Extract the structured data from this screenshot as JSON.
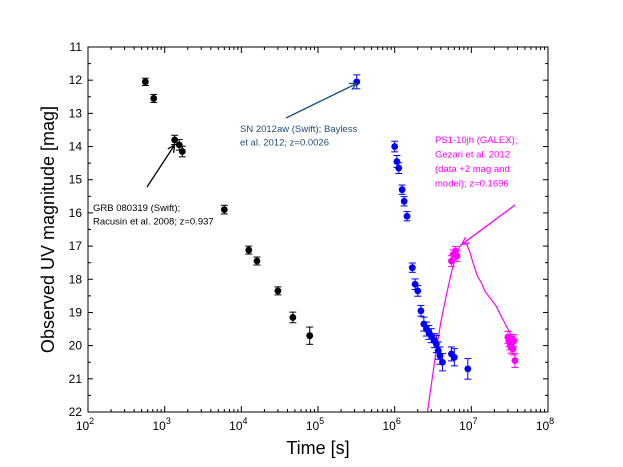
{
  "chart_data": {
    "type": "scatter",
    "xscale": "log",
    "xlim": [
      100,
      100000000
    ],
    "ylim": [
      11,
      22
    ],
    "y_inverted": true,
    "xlabel": "Time [s]",
    "ylabel": "Observed UV magnitude [mag]",
    "x_tick_labels": [
      {
        "base": "10",
        "exp": "2"
      },
      {
        "base": "10",
        "exp": "3"
      },
      {
        "base": "10",
        "exp": "4"
      },
      {
        "base": "10",
        "exp": "5"
      },
      {
        "base": "10",
        "exp": "6"
      },
      {
        "base": "10",
        "exp": "7"
      },
      {
        "base": "10",
        "exp": "8"
      }
    ],
    "y_ticks": [
      "11",
      "12",
      "13",
      "14",
      "15",
      "16",
      "17",
      "18",
      "19",
      "20",
      "21",
      "22"
    ],
    "series": [
      {
        "name": "GRB 080319",
        "color": "#000000",
        "points": [
          {
            "x": 560,
            "y": 12.05,
            "err": 0.05
          },
          {
            "x": 720,
            "y": 12.55,
            "err": 0.06
          },
          {
            "x": 1350,
            "y": 13.8,
            "err": 0.08
          },
          {
            "x": 1550,
            "y": 13.95,
            "err": 0.1
          },
          {
            "x": 1700,
            "y": 14.15,
            "err": 0.1
          },
          {
            "x": 6000,
            "y": 15.9,
            "err": 0.07
          },
          {
            "x": 12500,
            "y": 17.12,
            "err": 0.06
          },
          {
            "x": 16000,
            "y": 17.45,
            "err": 0.06
          },
          {
            "x": 30000,
            "y": 18.35,
            "err": 0.06
          },
          {
            "x": 47000,
            "y": 19.15,
            "err": 0.1
          },
          {
            "x": 78000,
            "y": 19.7,
            "err": 0.2
          }
        ]
      },
      {
        "name": "SN 2012aw",
        "color": "#0000ff",
        "points": [
          {
            "x": 320000,
            "y": 12.05,
            "err": 0.15
          },
          {
            "x": 1000000,
            "y": 14.0,
            "err": 0.1
          },
          {
            "x": 1070000,
            "y": 14.45,
            "err": 0.12
          },
          {
            "x": 1130000,
            "y": 14.65,
            "err": 0.1
          },
          {
            "x": 1250000,
            "y": 15.3,
            "err": 0.08
          },
          {
            "x": 1330000,
            "y": 15.65,
            "err": 0.08
          },
          {
            "x": 1450000,
            "y": 16.1,
            "err": 0.08
          },
          {
            "x": 1700000,
            "y": 17.65,
            "err": 0.08
          },
          {
            "x": 1850000,
            "y": 18.15,
            "err": 0.1
          },
          {
            "x": 2000000,
            "y": 18.35,
            "err": 0.1
          },
          {
            "x": 2200000,
            "y": 18.95,
            "err": 0.1
          },
          {
            "x": 2400000,
            "y": 19.35,
            "err": 0.15
          },
          {
            "x": 2600000,
            "y": 19.5,
            "err": 0.15
          },
          {
            "x": 2800000,
            "y": 19.6,
            "err": 0.15
          },
          {
            "x": 3000000,
            "y": 19.7,
            "err": 0.15
          },
          {
            "x": 3300000,
            "y": 19.85,
            "err": 0.15
          },
          {
            "x": 3500000,
            "y": 19.95,
            "err": 0.2
          },
          {
            "x": 3700000,
            "y": 20.15,
            "err": 0.2
          },
          {
            "x": 3900000,
            "y": 20.3,
            "err": 0.2
          },
          {
            "x": 4200000,
            "y": 20.5,
            "err": 0.2
          },
          {
            "x": 5500000,
            "y": 20.25,
            "err": 0.15
          },
          {
            "x": 6000000,
            "y": 20.35,
            "err": 0.2
          },
          {
            "x": 9000000,
            "y": 20.7,
            "err": 0.25
          }
        ]
      },
      {
        "name": "PS1-10jh",
        "color": "#ff00ff",
        "points": [
          {
            "x": 5500000,
            "y": 17.45,
            "err": 0.1
          },
          {
            "x": 5800000,
            "y": 17.25,
            "err": 0.08
          },
          {
            "x": 6200000,
            "y": 17.15,
            "err": 0.08
          },
          {
            "x": 6500000,
            "y": 17.3,
            "err": 0.1
          },
          {
            "x": 30000000,
            "y": 19.75,
            "err": 0.12
          },
          {
            "x": 31000000,
            "y": 19.85,
            "err": 0.12
          },
          {
            "x": 32000000,
            "y": 19.95,
            "err": 0.12
          },
          {
            "x": 33000000,
            "y": 20.05,
            "err": 0.12
          },
          {
            "x": 34000000,
            "y": 19.9,
            "err": 0.12
          },
          {
            "x": 35000000,
            "y": 20.1,
            "err": 0.12
          },
          {
            "x": 36000000,
            "y": 19.85,
            "err": 0.12
          },
          {
            "x": 37000000,
            "y": 20.45,
            "err": 0.15
          }
        ]
      }
    ],
    "model_curve": {
      "name": "PS1-10jh model",
      "color": "#ff00ff",
      "points": [
        [
          2600000,
          22.2
        ],
        [
          3000000,
          21.2
        ],
        [
          3500000,
          20.1
        ],
        [
          4000000,
          19.3
        ],
        [
          4700000,
          18.5
        ],
        [
          5500000,
          17.8
        ],
        [
          6300000,
          17.3
        ],
        [
          7100000,
          17.0
        ],
        [
          7900000,
          16.9
        ],
        [
          8700000,
          16.95
        ],
        [
          9500000,
          17.15
        ],
        [
          10500000,
          17.5
        ],
        [
          12000000,
          17.9
        ],
        [
          13500000,
          18.1
        ],
        [
          15000000,
          18.35
        ],
        [
          18000000,
          18.6
        ],
        [
          21000000,
          18.8
        ],
        [
          25000000,
          19.15
        ],
        [
          30000000,
          19.5
        ],
        [
          36000000,
          19.8
        ]
      ]
    },
    "annotations": [
      {
        "lines": [
          "GRB 080319 (Swift);",
          "Racusin et al. 2008; z=0.937"
        ],
        "color": "#000000",
        "arrow_to": [
          1350,
          13.95
        ]
      },
      {
        "lines": [
          "SN 2012aw (Swift); Bayless",
          "et al. 2012; z=0.0026"
        ],
        "color": "#1f4e79",
        "arrow_to": [
          320000,
          12.1
        ]
      },
      {
        "lines": [
          "PS1-10jh (GALEX);",
          "Gezari et al. 2012",
          "(data +2 mag and",
          "model); z=0.1696"
        ],
        "color": "#ff00ff",
        "arrow_to": [
          7500000,
          16.95
        ]
      }
    ]
  }
}
